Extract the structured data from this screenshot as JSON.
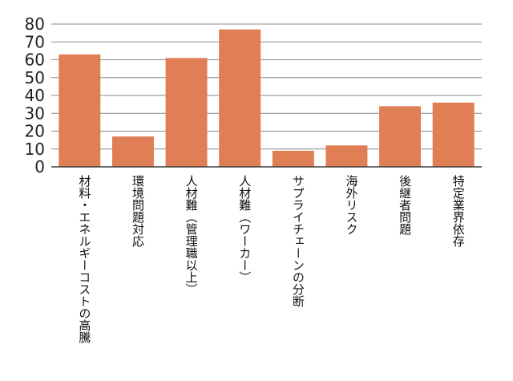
{
  "chart_data": {
    "type": "bar",
    "title": "",
    "xlabel": "",
    "ylabel": "",
    "categories": [
      "材料・エネルギーコストの高騰",
      "環境問題対応",
      "人材難（管理職以上）",
      "人材難（ワーカー）",
      "サプライチェーンの分断",
      "海外リスク",
      "後継者問題",
      "特定業界依存"
    ],
    "values": [
      63,
      17,
      61,
      77,
      9,
      12,
      34,
      36
    ],
    "ylim": [
      0,
      80
    ],
    "yticks": [
      "0",
      "10",
      "20",
      "30",
      "40",
      "50",
      "60",
      "70",
      "80"
    ],
    "grid": true,
    "legend": "none",
    "bar_color": "#E07F55",
    "grid_color": "#8A8A8A",
    "axis_color": "#3A3A3A"
  }
}
